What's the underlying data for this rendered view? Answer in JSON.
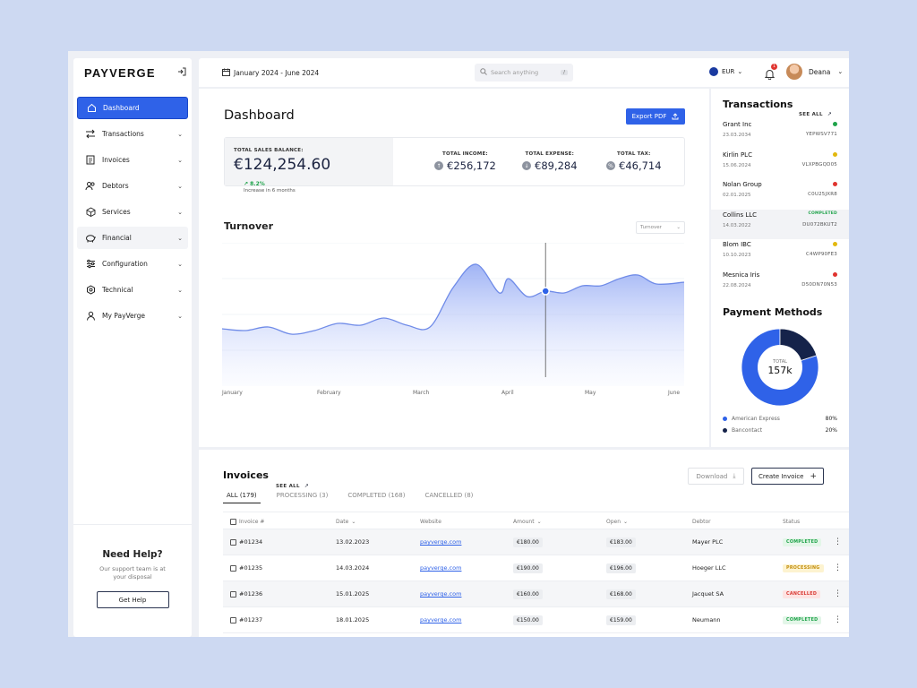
{
  "brand": "PAYVERGE",
  "sidebar": {
    "items": [
      {
        "label": "Dashboard",
        "icon": "home-icon"
      },
      {
        "label": "Transactions",
        "icon": "transfer-icon"
      },
      {
        "label": "Invoices",
        "icon": "document-icon"
      },
      {
        "label": "Debtors",
        "icon": "users-icon"
      },
      {
        "label": "Services",
        "icon": "box-icon"
      },
      {
        "label": "Financial",
        "icon": "piggy-bank-icon"
      },
      {
        "label": "Configuration",
        "icon": "sliders-icon"
      },
      {
        "label": "Technical",
        "icon": "cog-icon"
      },
      {
        "label": "My PayVerge",
        "icon": "user-icon"
      }
    ],
    "help": {
      "title": "Need Help?",
      "text": "Our support team is at your disposal",
      "button": "Get Help"
    }
  },
  "header": {
    "date_range": "January 2024 - June 2024",
    "search_placeholder": "Search anything",
    "search_shortcut": "/",
    "currency": "EUR",
    "notification_count": "1",
    "user_name": "Deana"
  },
  "dashboard": {
    "title": "Dashboard",
    "export_label": "Export PDF",
    "stats": {
      "sales_label": "TOTAL SALES BALANCE:",
      "sales_value": "€124,254.60",
      "trend_value": "8.2%",
      "trend_text": "Increase in 6 months",
      "income_label": "TOTAL INCOME:",
      "income_value": "€256,172",
      "expense_label": "TOTAL EXPENSE:",
      "expense_value": "€89,284",
      "tax_label": "TOTAL TAX:",
      "tax_value": "€46,714"
    },
    "turnover": {
      "title": "Turnover",
      "select_value": "Turnover"
    }
  },
  "chart_data": {
    "type": "area",
    "title": "Turnover",
    "categories": [
      "January",
      "February",
      "March",
      "April",
      "May",
      "June"
    ],
    "x": [
      0,
      0.25,
      0.5,
      0.75,
      1,
      1.25,
      1.5,
      1.75,
      2,
      2.25,
      2.5,
      2.75,
      3,
      3.1,
      3.3,
      3.5,
      3.7,
      3.9,
      4.1,
      4.3,
      4.5,
      4.7,
      5
    ],
    "y": [
      32,
      31,
      33,
      29,
      31,
      35,
      34,
      38,
      34,
      33,
      55,
      68,
      52,
      60,
      50,
      53,
      52,
      56,
      56,
      60,
      62,
      57,
      58
    ],
    "ylim": [
      0,
      80
    ],
    "highlight_x": 3.5,
    "grid": true
  },
  "transactions": {
    "title": "Transactions",
    "see_all": "SEE ALL",
    "items": [
      {
        "name": "Grant Inc",
        "date": "23.03.2034",
        "code": "YEPWSV771",
        "status_color": "#1fa34a",
        "status": ""
      },
      {
        "name": "Kirlin PLC",
        "date": "15.06.2024",
        "code": "VLXPBGQD05",
        "status_color": "#e2b80e",
        "status": ""
      },
      {
        "name": "Nolan Group",
        "date": "02.01.2025",
        "code": "C0U25JXR8",
        "status_color": "#e0342f",
        "status": ""
      },
      {
        "name": "Collins LLC",
        "date": "14.03.2022",
        "code": "DU072BKUT2",
        "status_color": "",
        "status": "COMPLETED"
      },
      {
        "name": "Blom IBC",
        "date": "10.10.2023",
        "code": "C4WP90FE3",
        "status_color": "#e2b80e",
        "status": ""
      },
      {
        "name": "Mesnica Iris",
        "date": "22.08.2024",
        "code": "D50DN70N53",
        "status_color": "#e0342f",
        "status": ""
      }
    ]
  },
  "payment_methods": {
    "title": "Payment Methods",
    "total_label": "TOTAL",
    "total_value": "157k",
    "items": [
      {
        "name": "American Express",
        "pct": "80%",
        "value": 80,
        "color": "#2f62e8"
      },
      {
        "name": "Bancontact",
        "pct": "20%",
        "value": 20,
        "color": "#15234a"
      }
    ]
  },
  "invoices": {
    "title": "Invoices",
    "see_all": "SEE ALL",
    "download": "Download",
    "create": "Create Invoice",
    "tabs": [
      "ALL (179)",
      "PROCESSING (3)",
      "COMPLETED (168)",
      "CANCELLED (8)"
    ],
    "columns": [
      "Invoice #",
      "Date",
      "Website",
      "Amount",
      "Open",
      "Debtor",
      "Status"
    ],
    "rows": [
      {
        "id": "#01234",
        "date": "13.02.2023",
        "website": "payverge.com",
        "amount": "€180.00",
        "open": "€183.00",
        "debtor": "Mayer PLC",
        "status": "COMPLETED"
      },
      {
        "id": "#01235",
        "date": "14.03.2024",
        "website": "payverge.com",
        "amount": "€190.00",
        "open": "€196.00",
        "debtor": "Hoeger LLC",
        "status": "PROCESSING"
      },
      {
        "id": "#01236",
        "date": "15.01.2025",
        "website": "payverge.com",
        "amount": "€160.00",
        "open": "€168.00",
        "debtor": "Jacquet SA",
        "status": "CANCELLED"
      },
      {
        "id": "#01237",
        "date": "18.01.2025",
        "website": "payverge.com",
        "amount": "€150.00",
        "open": "€159.00",
        "debtor": "Neumann",
        "status": "COMPLETED"
      }
    ]
  }
}
